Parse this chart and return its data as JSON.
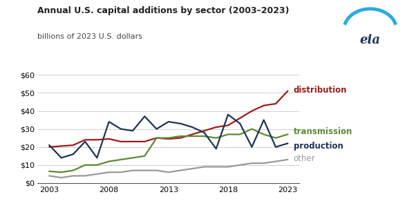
{
  "title": "Annual U.S. capital additions by sector (2003–2023)",
  "subtitle": "billions of 2023 U.S. dollars",
  "years": [
    2003,
    2004,
    2005,
    2006,
    2007,
    2008,
    2009,
    2010,
    2011,
    2012,
    2013,
    2014,
    2015,
    2016,
    2017,
    2018,
    2019,
    2020,
    2021,
    2022,
    2023
  ],
  "distribution": [
    20,
    20.5,
    21,
    24,
    24,
    24.5,
    23,
    23,
    23,
    25,
    24.5,
    25,
    27,
    29,
    31,
    32,
    36,
    40,
    43,
    44,
    51
  ],
  "transmission": [
    6.5,
    6,
    7,
    10,
    10,
    12,
    13,
    14,
    15,
    25,
    25,
    26,
    26,
    26,
    25,
    27,
    27,
    30,
    27,
    25,
    27
  ],
  "production": [
    21,
    14,
    16,
    23,
    14,
    34,
    30,
    29,
    37,
    30,
    34,
    33,
    31,
    28,
    19,
    38,
    33,
    20,
    35,
    20,
    22
  ],
  "other": [
    4,
    3,
    4,
    4,
    5,
    6,
    6,
    7,
    7,
    7,
    6,
    7,
    8,
    9,
    9,
    9,
    10,
    11,
    11,
    12,
    13
  ],
  "colors": {
    "distribution": "#9e1a1a",
    "transmission": "#5a8a32",
    "production": "#1a3356",
    "other": "#999999"
  },
  "ylim": [
    0,
    60
  ],
  "yticks": [
    0,
    10,
    20,
    30,
    40,
    50,
    60
  ],
  "xticks": [
    2003,
    2008,
    2013,
    2018,
    2023
  ],
  "background_color": "#ffffff",
  "grid_color": "#d0d0d0",
  "title_fontsize": 9,
  "subtitle_fontsize": 8,
  "label_fontsize": 8.5
}
